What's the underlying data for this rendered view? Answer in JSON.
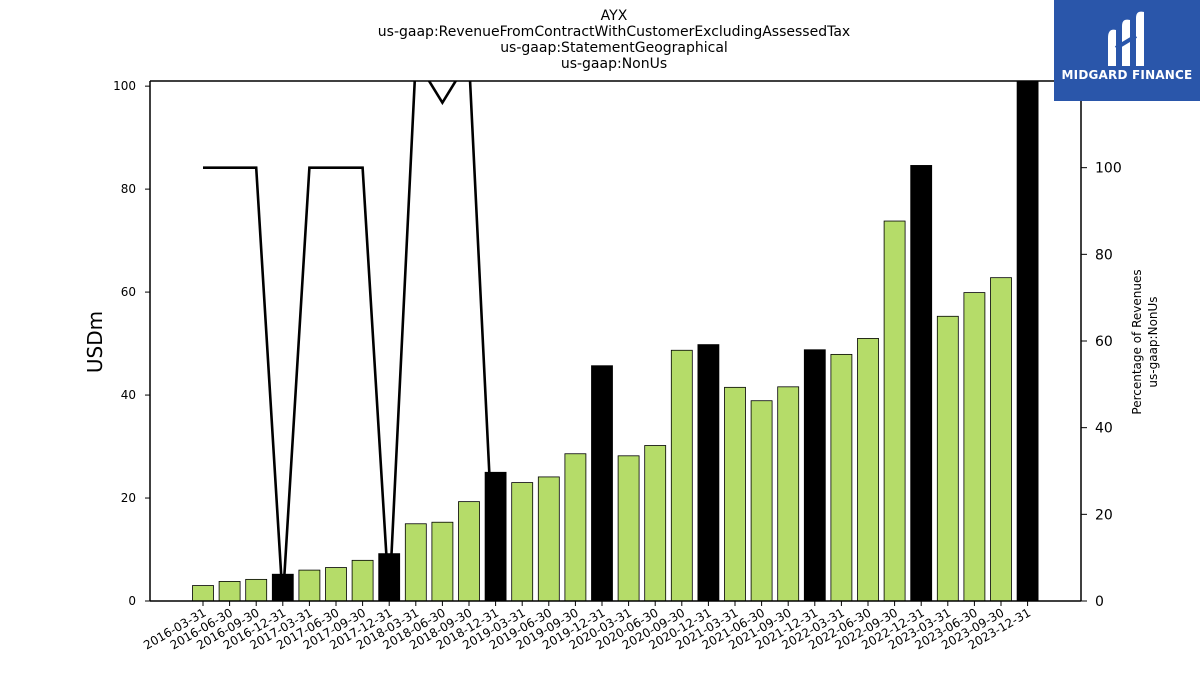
{
  "chart_data": {
    "type": "bar",
    "title_lines": [
      "AYX",
      "us-gaap:RevenueFromContractWithCustomerExcludingAssessedTax",
      "us-gaap:StatementGeographical",
      "us-gaap:NonUs"
    ],
    "ylabel": "USDm",
    "y2label_lines": [
      "Percentage of Revenues",
      "us-gaap:NonUs"
    ],
    "ylim": [
      0,
      101
    ],
    "y_ticks": [
      0,
      20,
      40,
      60,
      80,
      100
    ],
    "y2lim": [
      0,
      120
    ],
    "y2_ticks": [
      0,
      20,
      40,
      60,
      80,
      100
    ],
    "categories": [
      "2016-03-31",
      "2016-06-30",
      "2016-09-30",
      "2016-12-31",
      "2017-03-31",
      "2017-06-30",
      "2017-09-30",
      "2017-12-31",
      "2018-03-31",
      "2018-06-30",
      "2018-09-30",
      "2018-12-31",
      "2019-03-31",
      "2019-06-30",
      "2019-09-30",
      "2019-12-31",
      "2020-03-31",
      "2020-06-30",
      "2020-09-30",
      "2020-12-31",
      "2021-03-31",
      "2021-06-30",
      "2021-09-30",
      "2021-12-31",
      "2022-03-31",
      "2022-06-30",
      "2022-09-30",
      "2022-12-31",
      "2023-03-31",
      "2023-06-30",
      "2023-09-30",
      "2023-12-31"
    ],
    "values": [
      3.0,
      3.8,
      4.2,
      5.2,
      6.0,
      6.5,
      7.9,
      9.2,
      15.0,
      15.3,
      19.3,
      25.0,
      23.0,
      24.1,
      28.6,
      45.7,
      28.2,
      30.2,
      48.7,
      49.8,
      41.5,
      38.9,
      41.6,
      48.8,
      47.9,
      51.0,
      73.8,
      84.6,
      55.3,
      59.9,
      62.8,
      101.0
    ],
    "series": [
      {
        "name": "us-gaap:NonUs",
        "values": [
          100,
          100,
          100,
          0,
          100,
          100,
          100,
          0,
          125,
          115,
          125,
          0,
          null,
          null,
          null,
          null,
          null,
          null,
          null,
          null,
          null,
          null,
          null,
          null,
          null,
          null,
          null,
          null,
          null,
          null,
          null,
          null
        ]
      }
    ],
    "colors": {
      "bar_regular": "#b5dc69",
      "bar_annual": "#000000",
      "line": "#000000",
      "logo_bg": "#2a56aa"
    },
    "grid": false
  },
  "logo": {
    "text": "MIDGARD FINANCE"
  }
}
